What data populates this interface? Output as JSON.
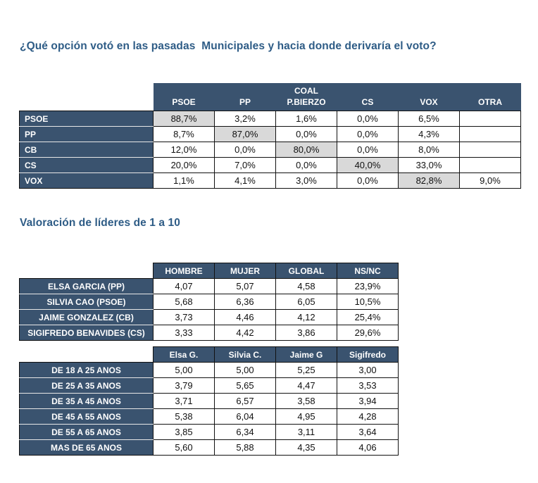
{
  "colors": {
    "header_bg": "#3A536F",
    "header_text": "#FFFFFF",
    "title_text": "#2E5C86",
    "cell_bg": "#FFFFFF",
    "cell_text": "#111111",
    "cell_highlight_bg": "#D9D9D9",
    "grid_border": "#111111"
  },
  "section1": {
    "title": "¿Qué opción votó en las pasadas  Municipales y hacia donde derivaría el voto?"
  },
  "section2": {
    "title": "Valoración de líderes de 1 a 10"
  },
  "vote_transfer_table": {
    "header_group": "COAL",
    "header_group_col": 2,
    "columns": [
      "PSOE",
      "PP",
      "P.BIERZO",
      "CS",
      "VOX",
      "OTRA"
    ],
    "rows": [
      {
        "label": "PSOE",
        "values": [
          "88,7%",
          "3,2%",
          "1,6%",
          "0,0%",
          "6,5%",
          ""
        ],
        "highlight_col": 0
      },
      {
        "label": "PP",
        "values": [
          "8,7%",
          "87,0%",
          "0,0%",
          "0,0%",
          "4,3%",
          ""
        ],
        "highlight_col": 1
      },
      {
        "label": "CB",
        "values": [
          "12,0%",
          "0,0%",
          "80,0%",
          "0,0%",
          "8,0%",
          ""
        ],
        "highlight_col": 2
      },
      {
        "label": "CS",
        "values": [
          "20,0%",
          "7,0%",
          "0,0%",
          "40,0%",
          "33,0%",
          ""
        ],
        "highlight_col": 3
      },
      {
        "label": "VOX",
        "values": [
          "1,1%",
          "4,1%",
          "3,0%",
          "0,0%",
          "82,8%",
          "9,0%"
        ],
        "highlight_col": 4
      }
    ]
  },
  "leaders_table": {
    "columns": [
      "HOMBRE",
      "MUJER",
      "GLOBAL",
      "NS/NC"
    ],
    "rows": [
      {
        "label": "ELSA GARCIA (PP)",
        "values": [
          "4,07",
          "5,07",
          "4,58",
          "23,9%"
        ]
      },
      {
        "label": "SILVIA CAO (PSOE)",
        "values": [
          "5,68",
          "6,36",
          "6,05",
          "10,5%"
        ]
      },
      {
        "label": "JAIME GONZALEZ (CB)",
        "values": [
          "3,73",
          "4,46",
          "4,12",
          "25,4%"
        ]
      },
      {
        "label": "SIGIFREDO BENAVIDES (CS)",
        "values": [
          "3,33",
          "4,42",
          "3,86",
          "29,6%"
        ]
      }
    ]
  },
  "age_table": {
    "columns": [
      "Elsa G.",
      "Silvia C.",
      "Jaime G",
      "Sigifredo"
    ],
    "rows": [
      {
        "label": "DE 18 A 25 ANOS",
        "values": [
          "5,00",
          "5,00",
          "5,25",
          "3,00"
        ]
      },
      {
        "label": "DE 25 A 35 ANOS",
        "values": [
          "3,79",
          "5,65",
          "4,47",
          "3,53"
        ]
      },
      {
        "label": "DE 35 A 45 ANOS",
        "values": [
          "3,71",
          "6,57",
          "3,58",
          "3,94"
        ]
      },
      {
        "label": "DE 45 A 55 ANOS",
        "values": [
          "5,38",
          "6,04",
          "4,95",
          "4,28"
        ]
      },
      {
        "label": "DE 55 A 65 ANOS",
        "values": [
          "3,85",
          "6,34",
          "3,11",
          "3,64"
        ]
      },
      {
        "label": "MAS DE 65 ANOS",
        "values": [
          "5,60",
          "5,88",
          "4,35",
          "4,06"
        ]
      }
    ]
  }
}
